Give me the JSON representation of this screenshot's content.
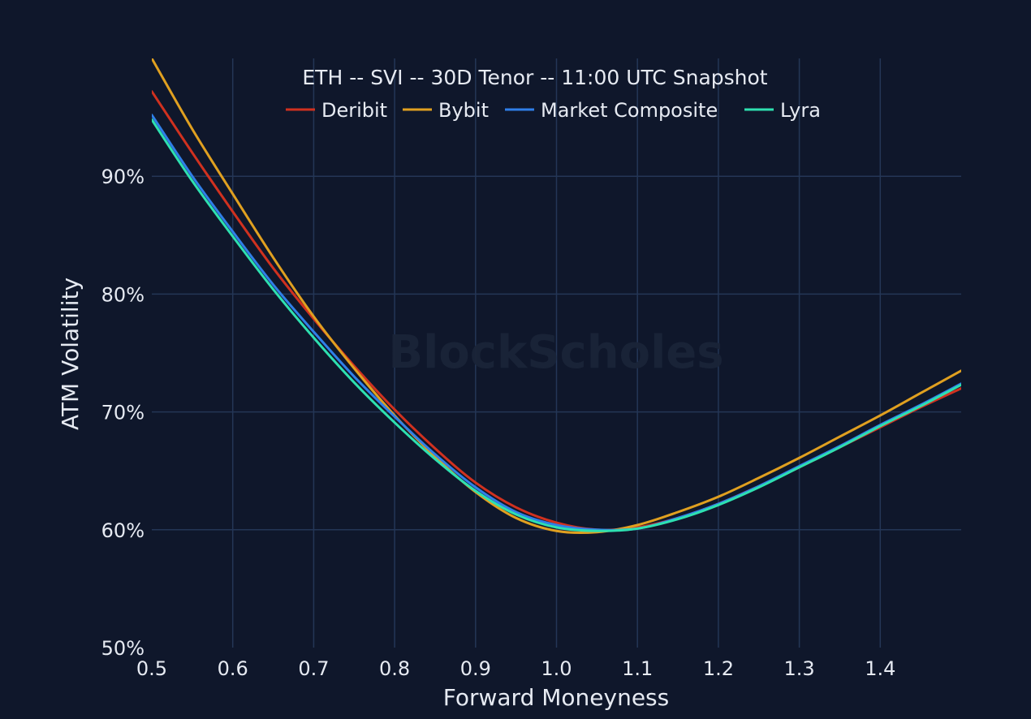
{
  "chart_data": {
    "type": "line",
    "title": "ETH -- SVI -- 30D Tenor -- 11:00 UTC Snapshot",
    "xlabel": "Forward Moneyness",
    "ylabel": "ATM Volatility",
    "watermark": "BlockScholes",
    "xlim": [
      0.5,
      1.5
    ],
    "ylim": [
      50,
      100
    ],
    "x_ticks": [
      0.5,
      0.6,
      0.7,
      0.8,
      0.9,
      1.0,
      1.1,
      1.2,
      1.3,
      1.4
    ],
    "x_tick_labels": [
      "0.5",
      "0.6",
      "0.7",
      "0.8",
      "0.9",
      "1.0",
      "1.1",
      "1.2",
      "1.3",
      "1.4"
    ],
    "y_ticks": [
      50,
      60,
      70,
      80,
      90
    ],
    "y_tick_labels": [
      "50%",
      "60%",
      "70%",
      "80%",
      "90%"
    ],
    "grid": true,
    "legend_position": "top-center",
    "x": [
      0.5,
      0.55,
      0.6,
      0.65,
      0.7,
      0.75,
      0.8,
      0.85,
      0.9,
      0.95,
      1.0,
      1.05,
      1.1,
      1.15,
      1.2,
      1.25,
      1.3,
      1.35,
      1.4,
      1.45,
      1.5
    ],
    "series": [
      {
        "name": "Deribit",
        "color": "#d0311f",
        "values": [
          97.2,
          92.0,
          87.0,
          82.2,
          77.9,
          73.9,
          70.2,
          66.9,
          64.0,
          61.9,
          60.6,
          60.0,
          60.2,
          61.0,
          62.2,
          63.7,
          65.3,
          67.0,
          68.7,
          70.4,
          72.0
        ]
      },
      {
        "name": "Bybit",
        "color": "#e0a020",
        "values": [
          100.0,
          94.0,
          88.5,
          83.1,
          78.1,
          73.7,
          69.7,
          66.2,
          63.2,
          61.0,
          59.9,
          59.8,
          60.4,
          61.5,
          62.8,
          64.4,
          66.1,
          67.9,
          69.7,
          71.6,
          73.5
        ]
      },
      {
        "name": "Market Composite",
        "color": "#2f7fe8",
        "values": [
          95.2,
          90.0,
          85.3,
          80.8,
          76.8,
          73.0,
          69.6,
          66.4,
          63.6,
          61.5,
          60.4,
          60.0,
          60.1,
          61.0,
          62.2,
          63.7,
          65.4,
          67.1,
          68.9,
          70.6,
          72.4
        ]
      },
      {
        "name": "Lyra",
        "color": "#2ee0b0",
        "values": [
          94.8,
          89.6,
          84.9,
          80.4,
          76.3,
          72.5,
          69.1,
          66.0,
          63.3,
          61.3,
          60.2,
          59.9,
          60.1,
          60.9,
          62.1,
          63.6,
          65.3,
          67.0,
          68.8,
          70.5,
          72.3
        ]
      }
    ]
  }
}
